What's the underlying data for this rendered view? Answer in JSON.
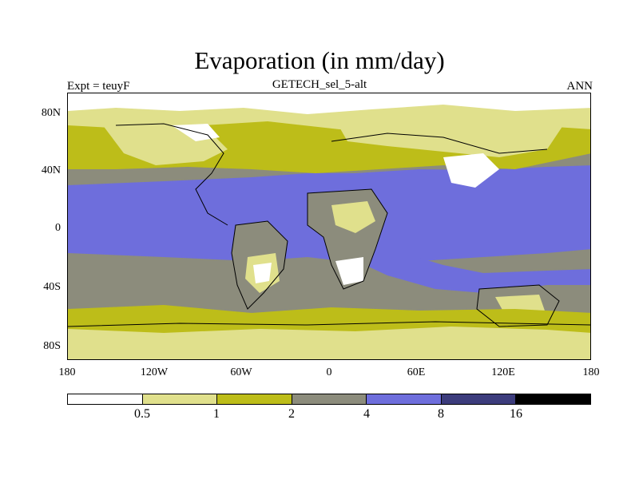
{
  "title": "Evaporation (in mm/day)",
  "subtitle": "GETECH_sel_5-alt",
  "left_label": "Expt = teuyF",
  "right_label": "ANN",
  "y_ticks": [
    "80N",
    "40N",
    "0",
    "40S",
    "80S"
  ],
  "x_ticks": [
    "180",
    "120W",
    "60W",
    "0",
    "60E",
    "120E",
    "180"
  ],
  "legend": {
    "colors": [
      "#ffffff",
      "#e0e08c",
      "#bdbd19",
      "#8c8c7c",
      "#6e6edc",
      "#3c3c7c",
      "#000000"
    ],
    "labels": [
      "0.5",
      "1",
      "2",
      "4",
      "8",
      "16"
    ]
  },
  "colors": {
    "lt0_5": "#ffffff",
    "c0_5_1": "#e0e08c",
    "c1_2": "#bdbd19",
    "c2_4": "#8c8c7c",
    "c4_8": "#6e6edc"
  }
}
